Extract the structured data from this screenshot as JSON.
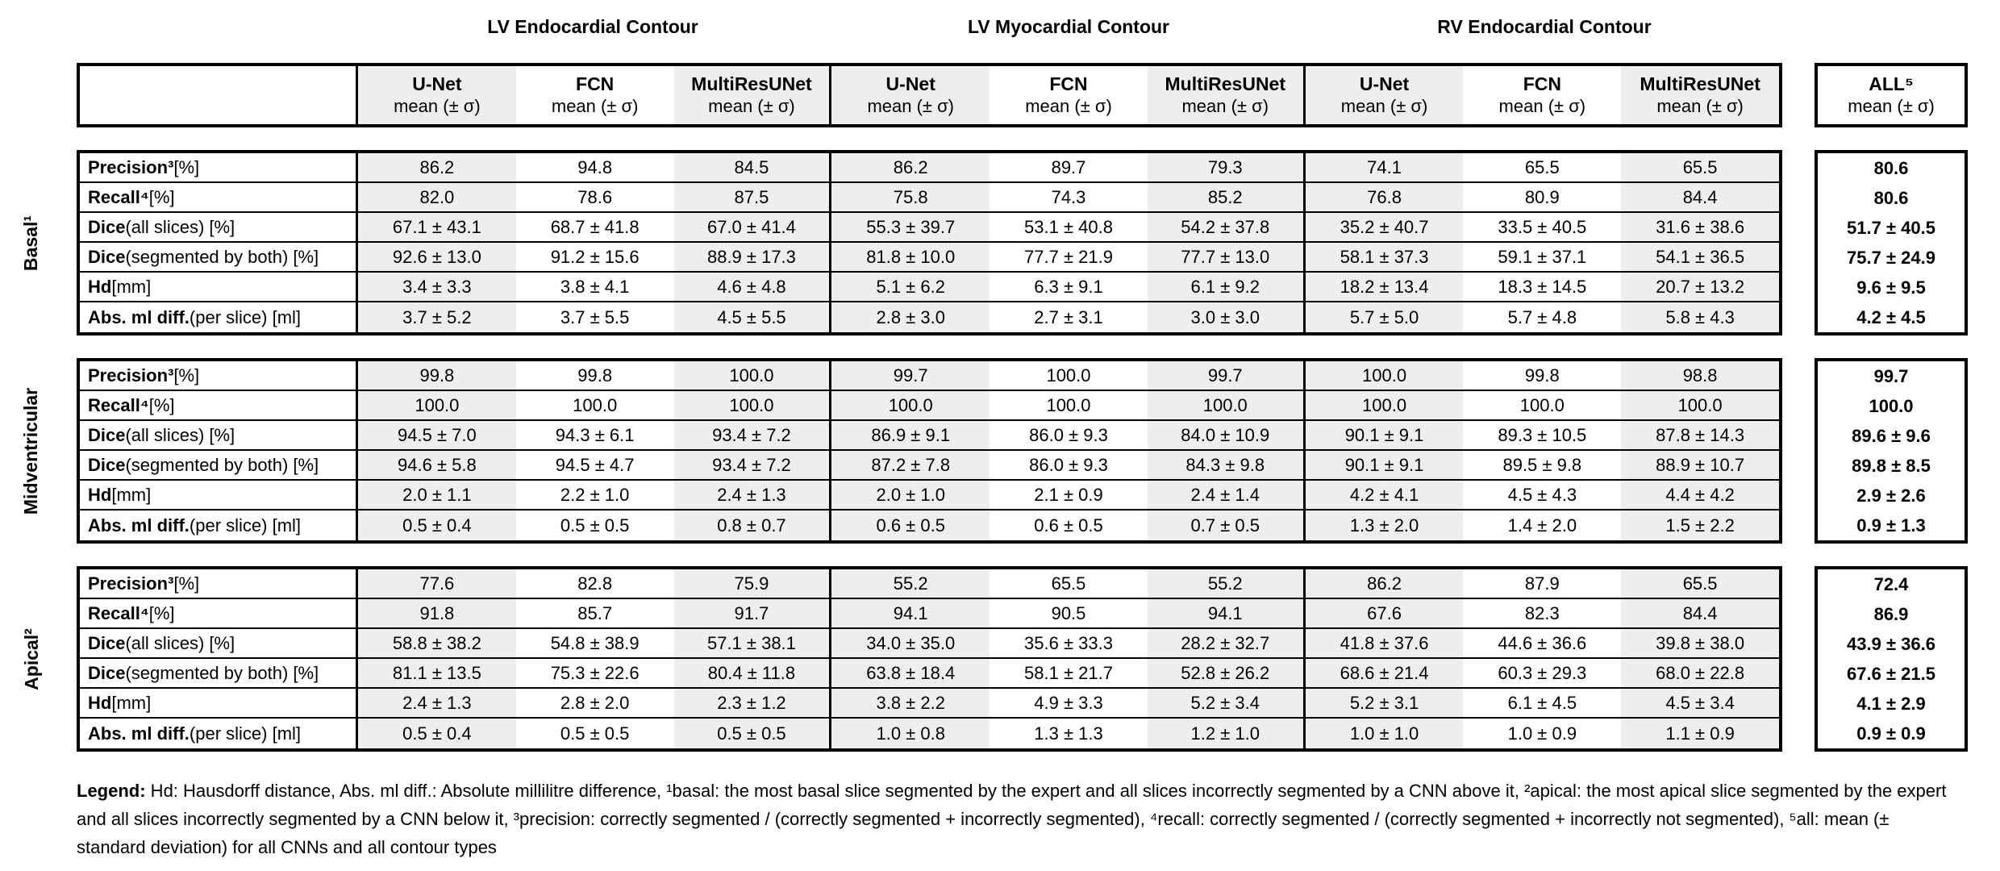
{
  "titles": [
    "LV Endocardial Contour",
    "LV Myocardial Contour",
    "RV Endocardial Contour"
  ],
  "columns": {
    "models": [
      "U-Net",
      "FCN",
      "MultiResUNet"
    ],
    "subtitle": "mean (± σ)"
  },
  "all_column": {
    "label": "ALL⁵",
    "subtitle": "mean (± σ)"
  },
  "row_labels": [
    {
      "bold": "Precision³",
      "rest": " [%]"
    },
    {
      "bold": "Recall⁴",
      "rest": " [%]"
    },
    {
      "bold": "Dice",
      "rest": " (all slices) [%]"
    },
    {
      "bold": "Dice",
      "rest": " (segmented by both) [%]"
    },
    {
      "bold": "Hd",
      "rest": " [mm]"
    },
    {
      "bold": "Abs. ml diff.",
      "rest": " (per slice) [ml]"
    }
  ],
  "blocks": [
    {
      "side_label": "Basal¹",
      "rows": [
        {
          "values": [
            "86.2",
            "94.8",
            "84.5",
            "86.2",
            "89.7",
            "79.3",
            "74.1",
            "65.5",
            "65.5"
          ],
          "all": "80.6"
        },
        {
          "values": [
            "82.0",
            "78.6",
            "87.5",
            "75.8",
            "74.3",
            "85.2",
            "76.8",
            "80.9",
            "84.4"
          ],
          "all": "80.6"
        },
        {
          "values": [
            "67.1 ± 43.1",
            "68.7 ± 41.8",
            "67.0 ± 41.4",
            "55.3 ± 39.7",
            "53.1 ± 40.8",
            "54.2 ± 37.8",
            "35.2 ± 40.7",
            "33.5 ± 40.5",
            "31.6 ± 38.6"
          ],
          "all": "51.7 ± 40.5"
        },
        {
          "values": [
            "92.6 ± 13.0",
            "91.2 ± 15.6",
            "88.9 ± 17.3",
            "81.8 ± 10.0",
            "77.7 ± 21.9",
            "77.7 ± 13.0",
            "58.1 ± 37.3",
            "59.1 ± 37.1",
            "54.1 ± 36.5"
          ],
          "all": "75.7 ± 24.9"
        },
        {
          "values": [
            "3.4 ± 3.3",
            "3.8 ± 4.1",
            "4.6 ± 4.8",
            "5.1 ± 6.2",
            "6.3 ± 9.1",
            "6.1 ± 9.2",
            "18.2 ± 13.4",
            "18.3 ± 14.5",
            "20.7 ± 13.2"
          ],
          "all": "9.6 ± 9.5"
        },
        {
          "values": [
            "3.7 ± 5.2",
            "3.7 ± 5.5",
            "4.5 ± 5.5",
            "2.8 ± 3.0",
            "2.7 ± 3.1",
            "3.0 ± 3.0",
            "5.7 ± 5.0",
            "5.7 ± 4.8",
            "5.8 ± 4.3"
          ],
          "all": "4.2 ± 4.5"
        }
      ]
    },
    {
      "side_label": "Midventricular",
      "rows": [
        {
          "values": [
            "99.8",
            "99.8",
            "100.0",
            "99.7",
            "100.0",
            "99.7",
            "100.0",
            "99.8",
            "98.8"
          ],
          "all": "99.7"
        },
        {
          "values": [
            "100.0",
            "100.0",
            "100.0",
            "100.0",
            "100.0",
            "100.0",
            "100.0",
            "100.0",
            "100.0"
          ],
          "all": "100.0"
        },
        {
          "values": [
            "94.5 ± 7.0",
            "94.3 ± 6.1",
            "93.4 ± 7.2",
            "86.9 ± 9.1",
            "86.0 ± 9.3",
            "84.0 ± 10.9",
            "90.1 ± 9.1",
            "89.3 ± 10.5",
            "87.8 ± 14.3"
          ],
          "all": "89.6 ± 9.6"
        },
        {
          "values": [
            "94.6 ± 5.8",
            "94.5 ± 4.7",
            "93.4 ± 7.2",
            "87.2 ± 7.8",
            "86.0 ± 9.3",
            "84.3 ± 9.8",
            "90.1 ± 9.1",
            "89.5 ± 9.8",
            "88.9 ± 10.7"
          ],
          "all": "89.8 ± 8.5"
        },
        {
          "values": [
            "2.0 ± 1.1",
            "2.2 ± 1.0",
            "2.4 ± 1.3",
            "2.0 ± 1.0",
            "2.1 ± 0.9",
            "2.4 ± 1.4",
            "4.2 ± 4.1",
            "4.5 ± 4.3",
            "4.4 ± 4.2"
          ],
          "all": "2.9 ± 2.6"
        },
        {
          "values": [
            "0.5 ± 0.4",
            "0.5 ± 0.5",
            "0.8 ± 0.7",
            "0.6 ± 0.5",
            "0.6 ± 0.5",
            "0.7 ± 0.5",
            "1.3 ± 2.0",
            "1.4 ± 2.0",
            "1.5 ± 2.2"
          ],
          "all": "0.9 ± 1.3"
        }
      ]
    },
    {
      "side_label": "Apical²",
      "rows": [
        {
          "values": [
            "77.6",
            "82.8",
            "75.9",
            "55.2",
            "65.5",
            "55.2",
            "86.2",
            "87.9",
            "65.5"
          ],
          "all": "72.4"
        },
        {
          "values": [
            "91.8",
            "85.7",
            "91.7",
            "94.1",
            "90.5",
            "94.1",
            "67.6",
            "82.3",
            "84.4"
          ],
          "all": "86.9"
        },
        {
          "values": [
            "58.8 ± 38.2",
            "54.8 ± 38.9",
            "57.1 ± 38.1",
            "34.0 ± 35.0",
            "35.6 ± 33.3",
            "28.2 ± 32.7",
            "41.8 ± 37.6",
            "44.6 ± 36.6",
            "39.8 ± 38.0"
          ],
          "all": "43.9 ± 36.6"
        },
        {
          "values": [
            "81.1 ± 13.5",
            "75.3 ± 22.6",
            "80.4 ± 11.8",
            "63.8 ± 18.4",
            "58.1 ± 21.7",
            "52.8 ± 26.2",
            "68.6 ± 21.4",
            "60.3 ± 29.3",
            "68.0 ± 22.8"
          ],
          "all": "67.6 ± 21.5"
        },
        {
          "values": [
            "2.4 ± 1.3",
            "2.8 ± 2.0",
            "2.3 ± 1.2",
            "3.8 ± 2.2",
            "4.9 ± 3.3",
            "5.2 ± 3.4",
            "5.2 ± 3.1",
            "6.1 ± 4.5",
            "4.5 ± 3.4"
          ],
          "all": "4.1 ± 2.9"
        },
        {
          "values": [
            "0.5 ± 0.4",
            "0.5 ± 0.5",
            "0.5 ± 0.5",
            "1.0 ± 0.8",
            "1.3 ± 1.3",
            "1.2 ± 1.0",
            "1.0 ± 1.0",
            "1.0 ± 0.9",
            "1.1 ± 0.9"
          ],
          "all": "0.9 ± 0.9"
        }
      ]
    }
  ],
  "legend": {
    "label": "Legend:",
    "text": " Hd: Hausdorff distance, Abs. ml diff.: Absolute millilitre difference, ¹basal: the most basal slice segmented by the expert and all slices incorrectly segmented by a CNN above it, ²apical: the most apical slice segmented by the expert and all slices incorrectly segmented by a CNN below it, ³precision: correctly segmented / (correctly segmented + incorrectly segmented), ⁴recall: correctly segmented / (correctly segmented + incorrectly not segmented), ⁵all: mean (± standard deviation) for all CNNs and all contour types"
  },
  "colors": {
    "shaded_column": "#eeeeee",
    "border": "#000000",
    "background": "#ffffff"
  }
}
